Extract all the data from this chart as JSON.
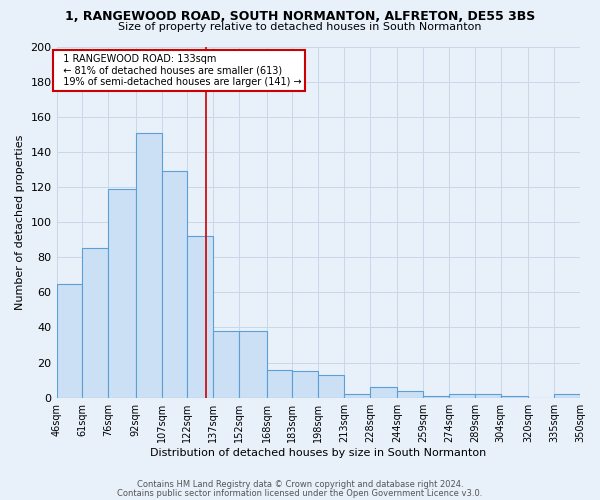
{
  "title1": "1, RANGEWOOD ROAD, SOUTH NORMANTON, ALFRETON, DE55 3BS",
  "title2": "Size of property relative to detached houses in South Normanton",
  "xlabel": "Distribution of detached houses by size in South Normanton",
  "ylabel": "Number of detached properties",
  "footer1": "Contains HM Land Registry data © Crown copyright and database right 2024.",
  "footer2": "Contains public sector information licensed under the Open Government Licence v3.0.",
  "annotation_line1": "1 RANGEWOOD ROAD: 133sqm",
  "annotation_line2": "← 81% of detached houses are smaller (613)",
  "annotation_line3": "19% of semi-detached houses are larger (141) →",
  "property_size": 133,
  "bar_edges": [
    46,
    61,
    76,
    92,
    107,
    122,
    137,
    152,
    168,
    183,
    198,
    213,
    228,
    244,
    259,
    274,
    289,
    304,
    320,
    335,
    350
  ],
  "bar_heights": [
    65,
    85,
    119,
    151,
    129,
    92,
    38,
    38,
    16,
    15,
    13,
    2,
    6,
    4,
    1,
    2,
    2,
    1,
    0,
    2
  ],
  "bar_color": "#cce0f5",
  "bar_edge_color": "#5b9fd4",
  "vline_color": "#cc0000",
  "grid_color": "#c8d8e8",
  "bg_color": "#e8f0fa",
  "annotation_box_color": "#ffffff",
  "annotation_box_edge": "#cc0000",
  "ylim": [
    0,
    200
  ],
  "yticks": [
    0,
    20,
    40,
    60,
    80,
    100,
    120,
    140,
    160,
    180,
    200
  ]
}
